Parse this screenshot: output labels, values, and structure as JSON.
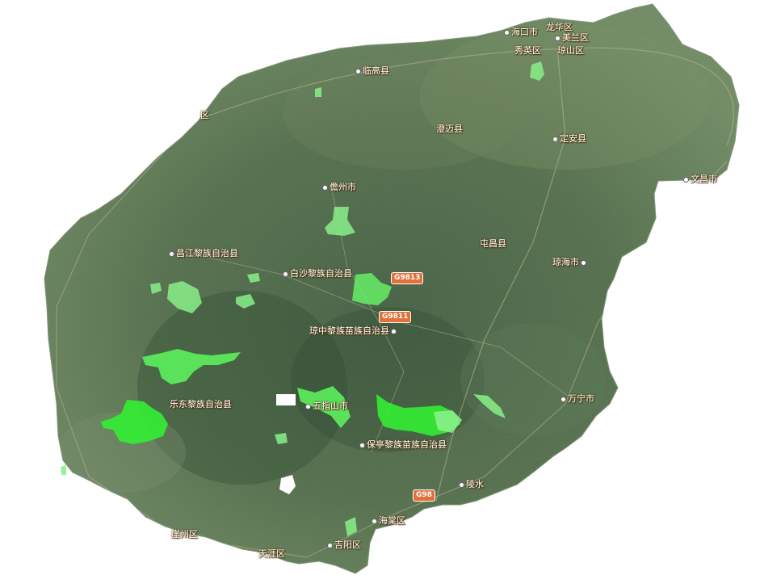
{
  "map": {
    "colors": {
      "background": "#ffffff",
      "terrain_dark": "#3e5a3e",
      "terrain_mid": "#56704c",
      "terrain_light": "#6f8a62",
      "reserve_bright": "#33ee33",
      "reserve_light": "#88f088",
      "label_text": "#ffffff",
      "label_halo": "#5a3a10",
      "shield_bg": "#e2703a"
    },
    "cities": [
      {
        "id": "haikou",
        "name": "海口市"
      },
      {
        "id": "longhua",
        "name": "龙华区"
      },
      {
        "id": "meilan",
        "name": "美兰区"
      },
      {
        "id": "xiuying",
        "name": "秀英区"
      },
      {
        "id": "qiongshan",
        "name": "琼山区"
      },
      {
        "id": "lingao",
        "name": "临高县"
      },
      {
        "id": "chengmai",
        "name": "澄迈县"
      },
      {
        "id": "dingan",
        "name": "定安县"
      },
      {
        "id": "wenchang",
        "name": "文昌市"
      },
      {
        "id": "danzhou",
        "name": "儋州市"
      },
      {
        "id": "tunchang",
        "name": "屯昌县"
      },
      {
        "id": "changjiang",
        "name": "昌江黎族自治县"
      },
      {
        "id": "baisha",
        "name": "白沙黎族自治县"
      },
      {
        "id": "qionghai",
        "name": "琼海市"
      },
      {
        "id": "qiongzhong",
        "name": "琼中黎族苗族自治县"
      },
      {
        "id": "wanning",
        "name": "万宁市"
      },
      {
        "id": "ledong",
        "name": "乐东黎族自治县"
      },
      {
        "id": "wuzhishan",
        "name": "五指山市"
      },
      {
        "id": "baoting",
        "name": "保亭黎族苗族自治县"
      },
      {
        "id": "lingshui",
        "name": "陵水"
      },
      {
        "id": "haitang",
        "name": "海棠区"
      },
      {
        "id": "yazhou",
        "name": "崖州区"
      },
      {
        "id": "jiyang",
        "name": "吉阳区"
      },
      {
        "id": "tianya",
        "name": "天涯区"
      },
      {
        "id": "west_edge",
        "name": "区"
      }
    ],
    "highways": [
      {
        "id": "g9813",
        "name": "G9813"
      },
      {
        "id": "g9811",
        "name": "G9811"
      },
      {
        "id": "g98",
        "name": "G98"
      }
    ]
  }
}
